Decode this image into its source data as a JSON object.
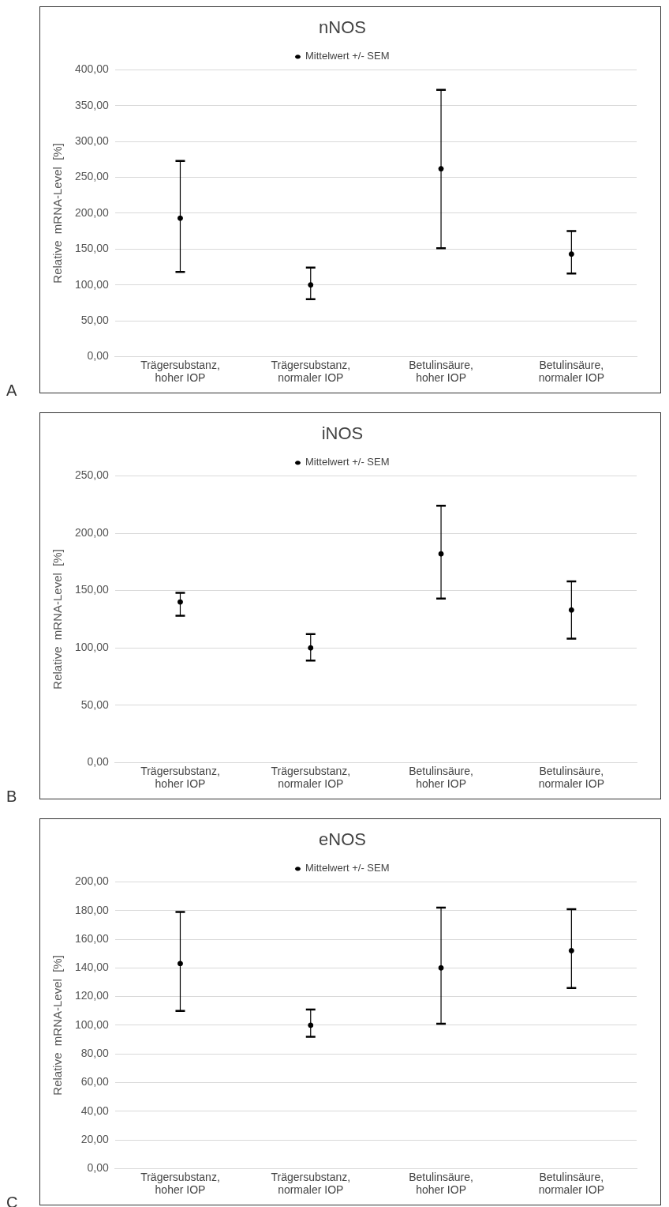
{
  "chart_data": [
    {
      "type": "scatter",
      "title": "nNOS",
      "ylabel": "Relative  mRNA-Level  [%]",
      "categories": [
        "Trägersubstanz,\nhoher IOP",
        "Trägersubstanz,\nnormaler IOP",
        "Betulinsäure,\nhoher IOP",
        "Betulinsäure,\nnormaler IOP"
      ],
      "series": [
        {
          "name": "Mittelwert +/- SEM",
          "color": "#000000",
          "values": [
            193,
            100,
            262,
            143
          ],
          "errors": [
            [
              118,
              273
            ],
            [
              80,
              124
            ],
            [
              151,
              372
            ],
            [
              116,
              175
            ]
          ]
        }
      ],
      "ylim": [
        0,
        400
      ],
      "yticks": [
        {
          "value": 0,
          "label": "0,00"
        },
        {
          "value": 50,
          "label": "50,00"
        },
        {
          "value": 100,
          "label": "100,00"
        },
        {
          "value": 150,
          "label": "150,00"
        },
        {
          "value": 200,
          "label": "200,00"
        },
        {
          "value": 250,
          "label": "250,00"
        },
        {
          "value": 300,
          "label": "300,00"
        },
        {
          "value": 350,
          "label": "350,00"
        },
        {
          "value": 400,
          "label": "400,00"
        }
      ],
      "grid": "y",
      "legend": "top",
      "marker": "circle",
      "annotations": [
        "A"
      ]
    },
    {
      "type": "scatter",
      "title": "iNOS",
      "ylabel": "Relative  mRNA-Level  [%]",
      "categories": [
        "Trägersubstanz,\nhoher IOP",
        "Trägersubstanz,\nnormaler IOP",
        "Betulinsäure,\nhoher IOP",
        "Betulinsäure,\nnormaler IOP"
      ],
      "series": [
        {
          "name": "Mittelwert +/- SEM",
          "color": "#000000",
          "values": [
            140,
            100,
            182,
            133
          ],
          "errors": [
            [
              128,
              148
            ],
            [
              89,
              112
            ],
            [
              143,
              224
            ],
            [
              108,
              158
            ]
          ]
        }
      ],
      "ylim": [
        0,
        250
      ],
      "yticks": [
        {
          "value": 0,
          "label": "0,00"
        },
        {
          "value": 50,
          "label": "50,00"
        },
        {
          "value": 100,
          "label": "100,00"
        },
        {
          "value": 150,
          "label": "150,00"
        },
        {
          "value": 200,
          "label": "200,00"
        },
        {
          "value": 250,
          "label": "250,00"
        }
      ],
      "grid": "y",
      "legend": "top",
      "marker": "circle",
      "annotations": [
        "B"
      ]
    },
    {
      "type": "scatter",
      "title": "eNOS",
      "ylabel": "Relative  mRNA-Level  [%]",
      "categories": [
        "Trägersubstanz,\nhoher IOP",
        "Trägersubstanz,\nnormaler IOP",
        "Betulinsäure,\nhoher IOP",
        "Betulinsäure,\nnormaler IOP"
      ],
      "series": [
        {
          "name": "Mittelwert +/- SEM",
          "color": "#000000",
          "values": [
            143,
            100,
            140,
            152
          ],
          "errors": [
            [
              110,
              179
            ],
            [
              92,
              111
            ],
            [
              101,
              182
            ],
            [
              126,
              181
            ]
          ]
        }
      ],
      "ylim": [
        0,
        200
      ],
      "yticks": [
        {
          "value": 0,
          "label": "0,00"
        },
        {
          "value": 20,
          "label": "20,00"
        },
        {
          "value": 40,
          "label": "40,00"
        },
        {
          "value": 60,
          "label": "60,00"
        },
        {
          "value": 80,
          "label": "80,00"
        },
        {
          "value": 100,
          "label": "100,00"
        },
        {
          "value": 120,
          "label": "120,00"
        },
        {
          "value": 140,
          "label": "140,00"
        },
        {
          "value": 160,
          "label": "160,00"
        },
        {
          "value": 180,
          "label": "180,00"
        },
        {
          "value": 200,
          "label": "200,00"
        }
      ],
      "grid": "y",
      "legend": "top",
      "marker": "circle",
      "annotations": [
        "C"
      ]
    }
  ]
}
